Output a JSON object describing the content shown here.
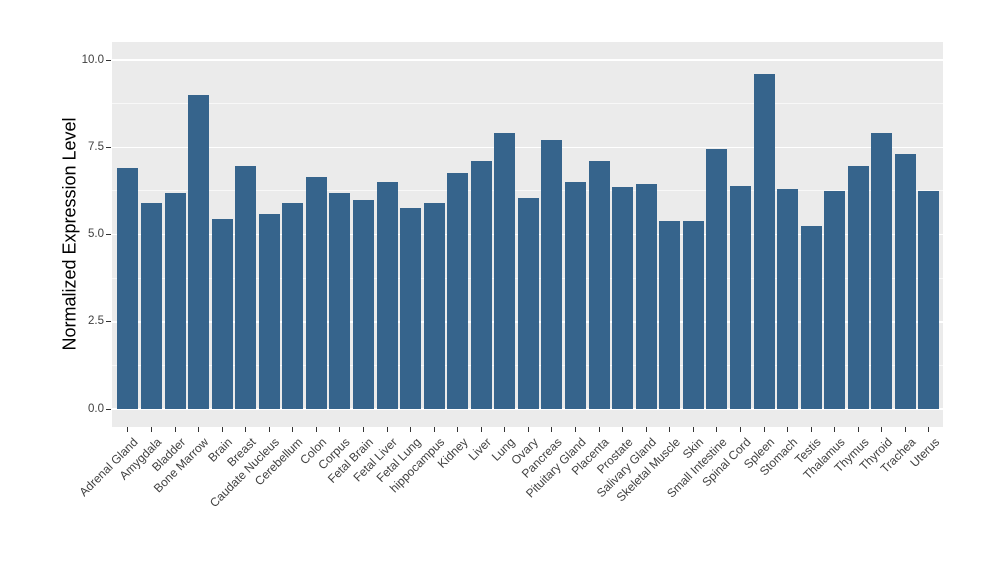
{
  "chart_data": {
    "type": "bar",
    "title": "",
    "xlabel": "",
    "ylabel": "Normalized Expression Level",
    "categories": [
      "Adrenal Gland",
      "Amygdala",
      "Bladder",
      "Bone Marrow",
      "Brain",
      "Breast",
      "Caudate Nucleus",
      "Cerebellum",
      "Colon",
      "Corpus",
      "Fetal Brain",
      "Fetal Liver",
      "Fetal Lung",
      "hippocampus",
      "Kidney",
      "Liver",
      "Lung",
      "Ovary",
      "Pancreas",
      "Pituitary Gland",
      "Placenta",
      "Prostate",
      "Salivary Gland",
      "Skeletal Muscle",
      "Skin",
      "Small Intestine",
      "Spinal Cord",
      "Spleen",
      "Stomach",
      "Testis",
      "Thalamus",
      "Thymus",
      "Thyroid",
      "Trachea",
      "Uterus"
    ],
    "values": [
      6.9,
      5.9,
      6.2,
      9.0,
      5.45,
      6.95,
      5.6,
      5.9,
      6.65,
      6.2,
      6.0,
      6.5,
      5.75,
      5.9,
      6.75,
      7.1,
      7.9,
      6.05,
      7.7,
      6.5,
      7.1,
      6.35,
      6.45,
      5.4,
      5.4,
      7.45,
      6.4,
      9.6,
      6.3,
      5.25,
      6.25,
      6.95,
      7.9,
      7.3,
      6.25
    ],
    "ylim": [
      0,
      10
    ],
    "yticks": [
      0.0,
      2.5,
      5.0,
      7.5,
      10.0
    ],
    "ytick_labels": [
      "0.0",
      "2.5",
      "5.0",
      "7.5",
      "10.0"
    ],
    "minor_gridlines": [
      1.25,
      3.75,
      6.25,
      8.75
    ],
    "grid": "on",
    "legend": "none",
    "x_labels_rotated_degrees": 45
  },
  "colors": {
    "bar_fill": "#36648C",
    "panel_background": "#EBEBEB",
    "gridline": "#FFFFFF",
    "tick_text": "#404040",
    "axis_title_text": "#000000",
    "figure_background": "#FFFFFF"
  }
}
